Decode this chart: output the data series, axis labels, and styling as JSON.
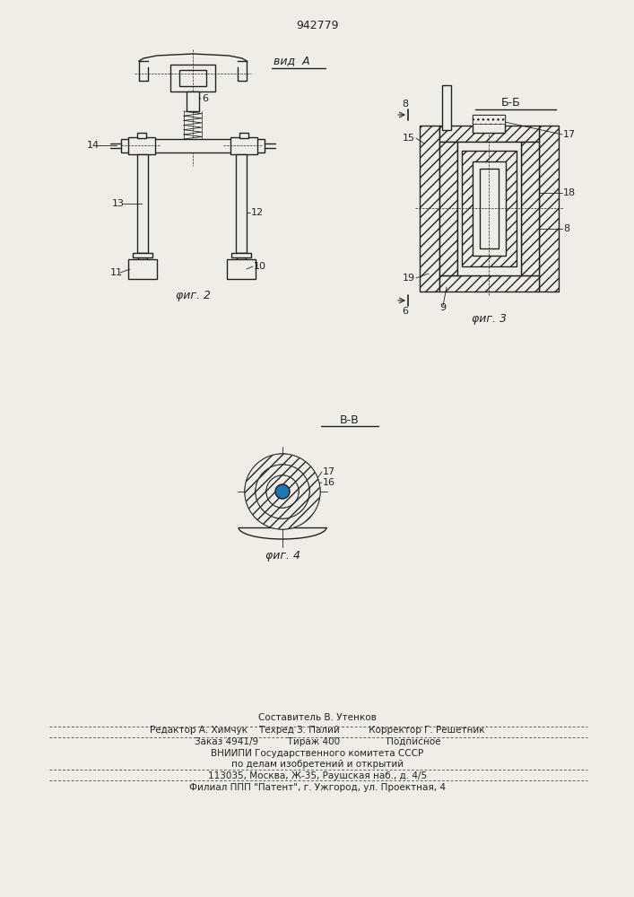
{
  "patent_number": "942779",
  "bg_color": "#f0ede6",
  "line_color": "#222222",
  "fig2_label": "φиг. 2",
  "fig3_label": "φиг. 3",
  "fig4_label": "φиг. 4",
  "vid_a_label": "вид  A",
  "bb_label": "Б-Б",
  "vv_label": "В-В",
  "footer_lines": [
    "Составитель В. Утенков",
    "Редактор А. Химчук    Техред З. Палий          Корректор Г. Решетник",
    "Заказ 4941/9          Тираж 400                Подписное",
    "ВНИИПИ Государственного комитета СССР",
    "по делам изобретений и открытий",
    "113035, Москва, Ж-35, Раушская наб., д. 4/5",
    "Филиал ППП \"Патент\", г. Ужгород, ул. Проектная, 4"
  ]
}
